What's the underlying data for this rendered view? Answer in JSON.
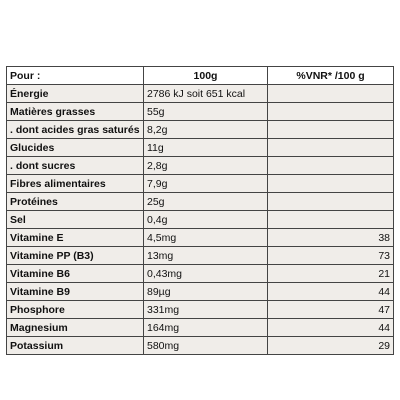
{
  "table": {
    "headers": {
      "label": "Pour :",
      "amount": "100g",
      "pct": "%VNR* /100 g"
    },
    "rows": [
      {
        "label": "Énergie",
        "value": "2786 kJ soit 651 kcal",
        "pct": ""
      },
      {
        "label": "Matières grasses",
        "value": "55g",
        "pct": ""
      },
      {
        "label": ". dont acides gras saturés",
        "value": "8,2g",
        "pct": ""
      },
      {
        "label": "Glucides",
        "value": "11g",
        "pct": ""
      },
      {
        "label": ". dont sucres",
        "value": "2,8g",
        "pct": ""
      },
      {
        "label": "Fibres alimentaires",
        "value": "7,9g",
        "pct": ""
      },
      {
        "label": "Protéines",
        "value": "25g",
        "pct": ""
      },
      {
        "label": "Sel",
        "value": "0,4g",
        "pct": ""
      },
      {
        "label": "Vitamine E",
        "value": "4,5mg",
        "pct": "38"
      },
      {
        "label": "Vitamine PP (B3)",
        "value": "13mg",
        "pct": "73"
      },
      {
        "label": "Vitamine B6",
        "value": "0,43mg",
        "pct": "21"
      },
      {
        "label": "Vitamine B9",
        "value": "89µg",
        "pct": "44"
      },
      {
        "label": "Phosphore",
        "value": "331mg",
        "pct": "47"
      },
      {
        "label": "Magnesium",
        "value": "164mg",
        "pct": "44"
      },
      {
        "label": "Potassium",
        "value": "580mg",
        "pct": "29"
      }
    ]
  },
  "colors": {
    "row_shade": "#f0ede9",
    "border": "#444444"
  }
}
